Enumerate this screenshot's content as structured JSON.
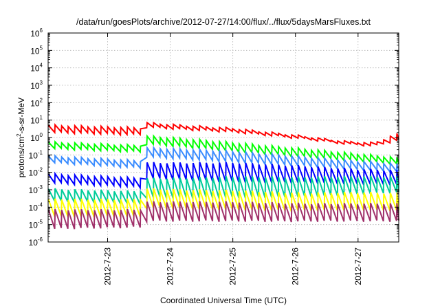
{
  "chart_data": {
    "type": "line",
    "title": "/data/run/goesPlots/archive/2012-07-27/14:00/flux/../flux/5daysMarsFluxes.txt",
    "xlabel": "Coordinated Universal Time (UTC)",
    "ylabel_parts": {
      "pre": "protons/cm",
      "sup": "2",
      "post": "-s-sr-MeV"
    },
    "yscale": "log",
    "ylim_exponents": [
      -6,
      6
    ],
    "y_ticks": [
      {
        "base": "10",
        "exp": "-6"
      },
      {
        "base": "10",
        "exp": "-5"
      },
      {
        "base": "10",
        "exp": "-4"
      },
      {
        "base": "10",
        "exp": "-3"
      },
      {
        "base": "10",
        "exp": "-2"
      },
      {
        "base": "10",
        "exp": "-1"
      },
      {
        "base": "10",
        "exp": "0"
      },
      {
        "base": "10",
        "exp": "1"
      },
      {
        "base": "10",
        "exp": "2"
      },
      {
        "base": "10",
        "exp": "3"
      },
      {
        "base": "10",
        "exp": "4"
      },
      {
        "base": "10",
        "exp": "5"
      },
      {
        "base": "10",
        "exp": "6"
      }
    ],
    "x_ticks": [
      "2012-7-23",
      "2012-7-24",
      "2012-7-25",
      "2012-7-26",
      "2012-7-27"
    ],
    "xlim_days": [
      22.05,
      27.65
    ],
    "grid": true,
    "series": [
      {
        "color": "#ff0000",
        "period": 0.105,
        "baseline": [
          [
            22.05,
            0.5
          ],
          [
            23.55,
            0.35
          ],
          [
            23.62,
            0.72
          ],
          [
            24.2,
            0.58
          ],
          [
            25.0,
            0.42
          ],
          [
            26.0,
            0.05
          ],
          [
            26.8,
            -0.3
          ],
          [
            27.25,
            -0.4
          ],
          [
            27.65,
            0.05
          ]
        ],
        "amp": [
          [
            22.05,
            0.2
          ],
          [
            23.5,
            0.2
          ],
          [
            23.6,
            0.12
          ],
          [
            25.0,
            0.1
          ],
          [
            26.5,
            0.06
          ],
          [
            27.2,
            0.08
          ],
          [
            27.65,
            0.2
          ]
        ]
      },
      {
        "color": "#00ff00",
        "period": 0.105,
        "baseline": [
          [
            22.05,
            -0.45
          ],
          [
            23.55,
            -0.65
          ],
          [
            23.62,
            -0.15
          ],
          [
            24.2,
            -0.3
          ],
          [
            25.0,
            -0.55
          ],
          [
            26.0,
            -0.85
          ],
          [
            27.0,
            -1.15
          ],
          [
            27.65,
            -1.35
          ]
        ],
        "amp": [
          [
            22.05,
            0.18
          ],
          [
            23.5,
            0.18
          ],
          [
            23.6,
            0.22
          ],
          [
            25.0,
            0.25
          ],
          [
            26.5,
            0.22
          ],
          [
            27.65,
            0.18
          ]
        ]
      },
      {
        "color": "#3a8cff",
        "period": 0.105,
        "baseline": [
          [
            22.05,
            -1.25
          ],
          [
            23.55,
            -1.55
          ],
          [
            23.62,
            -0.85
          ],
          [
            24.2,
            -0.95
          ],
          [
            25.0,
            -1.1
          ],
          [
            26.0,
            -1.35
          ],
          [
            27.0,
            -1.6
          ],
          [
            27.65,
            -1.75
          ]
        ],
        "amp": [
          [
            22.05,
            0.18
          ],
          [
            23.5,
            0.2
          ],
          [
            23.6,
            0.25
          ],
          [
            25.0,
            0.3
          ],
          [
            26.5,
            0.25
          ],
          [
            27.65,
            0.22
          ]
        ]
      },
      {
        "color": "#0000ff",
        "period": 0.105,
        "baseline": [
          [
            22.05,
            -2.35
          ],
          [
            23.55,
            -2.6
          ],
          [
            23.62,
            -1.9
          ],
          [
            24.2,
            -1.95
          ],
          [
            25.0,
            -2.0
          ],
          [
            26.0,
            -2.1
          ],
          [
            27.0,
            -2.25
          ],
          [
            27.65,
            -2.3
          ]
        ],
        "amp": [
          [
            22.05,
            0.25
          ],
          [
            23.5,
            0.25
          ],
          [
            23.6,
            0.45
          ],
          [
            25.0,
            0.55
          ],
          [
            26.5,
            0.45
          ],
          [
            27.65,
            0.4
          ]
        ]
      },
      {
        "color": "#00cc99",
        "period": 0.105,
        "baseline": [
          [
            22.05,
            -3.3
          ],
          [
            23.55,
            -3.45
          ],
          [
            23.62,
            -2.9
          ],
          [
            24.2,
            -2.9
          ],
          [
            25.0,
            -2.85
          ],
          [
            26.0,
            -2.85
          ],
          [
            27.0,
            -2.75
          ],
          [
            27.65,
            -2.7
          ]
        ],
        "amp": [
          [
            22.05,
            0.35
          ],
          [
            23.5,
            0.35
          ],
          [
            23.6,
            0.55
          ],
          [
            25.0,
            0.6
          ],
          [
            26.5,
            0.55
          ],
          [
            27.65,
            0.45
          ]
        ]
      },
      {
        "color": "#ffff00",
        "period": 0.105,
        "baseline": [
          [
            22.05,
            -4.05
          ],
          [
            23.55,
            -4.05
          ],
          [
            23.62,
            -3.5
          ],
          [
            24.2,
            -3.55
          ],
          [
            25.0,
            -3.6
          ],
          [
            26.0,
            -3.7
          ],
          [
            27.0,
            -3.65
          ],
          [
            27.65,
            -3.7
          ]
        ],
        "amp": [
          [
            22.05,
            0.5
          ],
          [
            23.5,
            0.5
          ],
          [
            23.6,
            0.55
          ],
          [
            25.0,
            0.55
          ],
          [
            26.5,
            0.5
          ],
          [
            27.65,
            0.5
          ]
        ]
      },
      {
        "color": "#a0306a",
        "period": 0.105,
        "baseline": [
          [
            22.05,
            -4.7
          ],
          [
            23.55,
            -4.65
          ],
          [
            23.62,
            -4.25
          ],
          [
            24.2,
            -4.25
          ],
          [
            25.0,
            -4.25
          ],
          [
            26.0,
            -4.3
          ],
          [
            27.0,
            -4.3
          ],
          [
            27.65,
            -4.3
          ]
        ],
        "amp": [
          [
            22.05,
            0.55
          ],
          [
            23.5,
            0.5
          ],
          [
            23.6,
            0.55
          ],
          [
            25.0,
            0.55
          ],
          [
            26.5,
            0.5
          ],
          [
            27.65,
            0.5
          ]
        ]
      }
    ]
  }
}
